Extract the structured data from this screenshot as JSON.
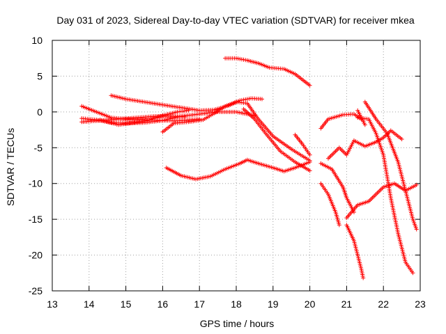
{
  "chart_data": {
    "type": "scatter",
    "title": "Day 031 of 2023, Sidereal Day-to-day VTEC variation (SDTVAR) for receiver mkea",
    "xlabel": "GPS time / hours",
    "ylabel": "SDTVAR / TECUs",
    "xlim": [
      13,
      23
    ],
    "ylim": [
      -25,
      10
    ],
    "xticks": [
      13,
      14,
      15,
      16,
      17,
      18,
      19,
      20,
      21,
      22,
      23
    ],
    "yticks": [
      -25,
      -20,
      -15,
      -10,
      -5,
      0,
      5,
      10
    ],
    "grid": true,
    "marker": "+",
    "color": "#ff0000",
    "series": [
      {
        "name": "s1",
        "points": [
          [
            13.8,
            0.8
          ],
          [
            14.2,
            0
          ],
          [
            14.6,
            -0.8
          ],
          [
            15,
            -1
          ],
          [
            15.5,
            -1.1
          ],
          [
            16,
            -1.2
          ],
          [
            16.5,
            -1.2
          ],
          [
            17,
            -1
          ]
        ]
      },
      {
        "name": "s2",
        "points": [
          [
            13.8,
            -1.4
          ],
          [
            14.3,
            -1.2
          ],
          [
            14.8,
            -1
          ],
          [
            15.3,
            -0.8
          ],
          [
            15.8,
            -0.6
          ],
          [
            16.3,
            -0.6
          ],
          [
            16.6,
            -0.7
          ]
        ]
      },
      {
        "name": "s3",
        "points": [
          [
            13.8,
            -0.9
          ],
          [
            14.2,
            -1.1
          ],
          [
            14.6,
            -1.5
          ],
          [
            15,
            -1.6
          ],
          [
            15.5,
            -1.5
          ],
          [
            16,
            -1.2
          ],
          [
            16.5,
            -0.6
          ],
          [
            17,
            -0.3
          ],
          [
            17.5,
            0
          ],
          [
            18,
            0
          ],
          [
            18.5,
            -0.5
          ]
        ]
      },
      {
        "name": "s4",
        "points": [
          [
            14.6,
            2.3
          ],
          [
            15,
            1.8
          ],
          [
            15.5,
            1.4
          ],
          [
            16,
            1
          ],
          [
            16.5,
            0.6
          ],
          [
            17,
            0.2
          ],
          [
            17.4,
            0.3
          ],
          [
            17.8,
            0.9
          ],
          [
            18.1,
            1.6
          ],
          [
            18.4,
            1.9
          ],
          [
            18.7,
            1.8
          ]
        ]
      },
      {
        "name": "s5",
        "points": [
          [
            14.3,
            -1.1
          ],
          [
            14.8,
            -1.8
          ],
          [
            15.2,
            -1.5
          ],
          [
            15.6,
            -1.2
          ],
          [
            16,
            -0.5
          ],
          [
            16.4,
            0
          ],
          [
            16.7,
            0.2
          ]
        ]
      },
      {
        "name": "s6",
        "points": [
          [
            16,
            -2.8
          ],
          [
            16.3,
            -1.6
          ],
          [
            16.7,
            -1.4
          ],
          [
            17.1,
            -1.1
          ],
          [
            17.4,
            -0.2
          ],
          [
            17.7,
            0.8
          ],
          [
            18,
            1.4
          ],
          [
            18.3,
            1.2
          ],
          [
            18.6,
            -1
          ],
          [
            19,
            -3.4
          ],
          [
            19.5,
            -5.2
          ],
          [
            20,
            -6.8
          ]
        ]
      },
      {
        "name": "s7",
        "points": [
          [
            18.2,
            0.4
          ],
          [
            18.5,
            -1
          ],
          [
            18.8,
            -3
          ],
          [
            19.2,
            -5.5
          ],
          [
            19.6,
            -7
          ],
          [
            20,
            -8.2
          ]
        ]
      },
      {
        "name": "s8",
        "points": [
          [
            17.7,
            7.5
          ],
          [
            18,
            7.5
          ],
          [
            18.3,
            7.2
          ],
          [
            18.6,
            6.8
          ],
          [
            18.9,
            6.2
          ],
          [
            19.3,
            6
          ],
          [
            19.6,
            5.3
          ],
          [
            20,
            3.7
          ]
        ]
      },
      {
        "name": "s9",
        "points": [
          [
            16.1,
            -7.8
          ],
          [
            16.5,
            -8.9
          ],
          [
            16.9,
            -9.4
          ],
          [
            17.3,
            -9
          ],
          [
            17.7,
            -8
          ],
          [
            18.1,
            -7.2
          ],
          [
            18.3,
            -6.7
          ],
          [
            18.6,
            -7.2
          ],
          [
            19,
            -7.8
          ],
          [
            19.3,
            -8.3
          ],
          [
            19.6,
            -7.8
          ],
          [
            20,
            -7
          ]
        ]
      },
      {
        "name": "s10",
        "points": [
          [
            19.6,
            -3.2
          ],
          [
            19.8,
            -4.5
          ],
          [
            20,
            -6
          ]
        ]
      },
      {
        "name": "s11",
        "points": [
          [
            20.3,
            -2.3
          ],
          [
            20.5,
            -1
          ],
          [
            20.9,
            -0.4
          ],
          [
            21.2,
            -0.3
          ],
          [
            21.4,
            -1
          ]
        ]
      },
      {
        "name": "s12",
        "points": [
          [
            20.3,
            -7.2
          ],
          [
            20.6,
            -8
          ],
          [
            20.9,
            -10.5
          ],
          [
            21,
            -12
          ],
          [
            21.2,
            -14
          ]
        ]
      },
      {
        "name": "s13",
        "points": [
          [
            20.3,
            -10
          ],
          [
            20.5,
            -11.5
          ],
          [
            20.7,
            -14
          ],
          [
            20.8,
            -15.8
          ]
        ]
      },
      {
        "name": "s14",
        "points": [
          [
            20.5,
            -6.5
          ],
          [
            20.8,
            -5
          ],
          [
            21,
            -6
          ],
          [
            21.2,
            -4
          ],
          [
            21.5,
            -4.8
          ],
          [
            21.8,
            -4.2
          ],
          [
            22,
            -3.6
          ],
          [
            22.2,
            -2.6
          ],
          [
            22.5,
            -3.8
          ]
        ]
      },
      {
        "name": "s15",
        "points": [
          [
            21,
            -15.8
          ],
          [
            21.2,
            -18
          ],
          [
            21.4,
            -22
          ],
          [
            21.45,
            -23.2
          ]
        ]
      },
      {
        "name": "s16",
        "points": [
          [
            21,
            -14.8
          ],
          [
            21.3,
            -13
          ],
          [
            21.6,
            -12.5
          ],
          [
            21.8,
            -11.5
          ],
          [
            22,
            -10.5
          ],
          [
            22.3,
            -10
          ],
          [
            22.6,
            -11
          ],
          [
            22.9,
            -10.2
          ]
        ]
      },
      {
        "name": "s17",
        "points": [
          [
            21.3,
            -0.8
          ],
          [
            21.6,
            -1
          ],
          [
            21.8,
            -3
          ],
          [
            22,
            -6
          ],
          [
            22.2,
            -12
          ],
          [
            22.4,
            -17
          ],
          [
            22.6,
            -21
          ],
          [
            22.8,
            -22.5
          ]
        ]
      },
      {
        "name": "s18",
        "points": [
          [
            21.5,
            1.4
          ],
          [
            21.8,
            -1
          ],
          [
            22.1,
            -3
          ],
          [
            22.4,
            -7
          ],
          [
            22.6,
            -11
          ],
          [
            22.8,
            -15
          ],
          [
            22.9,
            -16.4
          ]
        ]
      },
      {
        "name": "s19",
        "points": [
          [
            21.3,
            0.2
          ],
          [
            21.5,
            -1.8
          ]
        ]
      }
    ]
  }
}
